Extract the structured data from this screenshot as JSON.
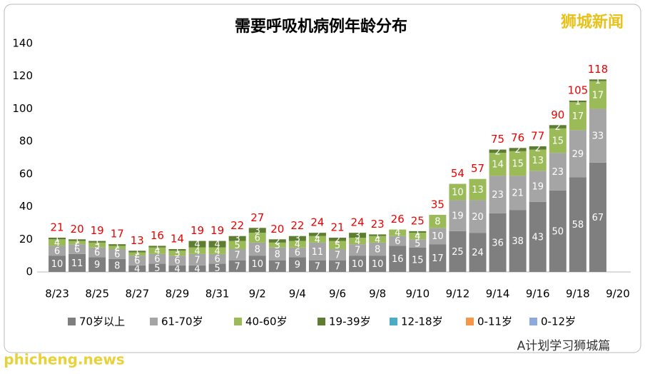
{
  "chart_data": {
    "type": "stacked_bar",
    "title": "需要呼吸机病例年龄分布",
    "categories": [
      "8/23",
      null,
      "8/25",
      null,
      "8/27",
      null,
      "8/29",
      null,
      "8/31",
      null,
      "9/2",
      null,
      "9/4",
      null,
      "9/6",
      null,
      "9/8",
      null,
      "9/10",
      null,
      "9/12",
      null,
      "9/14",
      null,
      "9/16",
      null,
      "9/18",
      null,
      "9/20"
    ],
    "series": [
      {
        "name": "70岁以上",
        "color": "#7f7f7f",
        "values": [
          10,
          11,
          9,
          8,
          4,
          5,
          4,
          4,
          5,
          7,
          10,
          7,
          9,
          7,
          7,
          10,
          10,
          16,
          15,
          17,
          25,
          24,
          36,
          38,
          43,
          50,
          58,
          67,
          null
        ]
      },
      {
        "name": "61-70岁",
        "color": "#a5a5a5",
        "values": [
          6,
          6,
          6,
          6,
          6,
          6,
          6,
          7,
          6,
          7,
          8,
          8,
          6,
          11,
          7,
          7,
          8,
          6,
          5,
          10,
          19,
          20,
          23,
          21,
          19,
          23,
          29,
          33,
          null
        ]
      },
      {
        "name": "40-60岁",
        "color": "#9bbb59",
        "values": [
          4,
          2,
          3,
          2,
          2,
          4,
          3,
          4,
          4,
          5,
          6,
          3,
          4,
          4,
          5,
          4,
          4,
          4,
          4,
          8,
          10,
          13,
          14,
          15,
          13,
          15,
          17,
          17,
          null
        ]
      },
      {
        "name": "19-39岁",
        "color": "#5d7d31",
        "values": [
          1,
          1,
          1,
          1,
          1,
          1,
          1,
          4,
          4,
          3,
          3,
          2,
          3,
          2,
          2,
          3,
          1,
          0,
          1,
          0,
          0,
          0,
          2,
          2,
          2,
          2,
          1,
          1,
          null
        ]
      },
      {
        "name": "12-18岁",
        "color": "#4bacc6",
        "values": [
          0,
          0,
          0,
          0,
          0,
          0,
          0,
          0,
          0,
          0,
          0,
          0,
          0,
          0,
          0,
          0,
          0,
          0,
          0,
          0,
          0,
          0,
          0,
          0,
          0,
          0,
          0,
          0,
          null
        ]
      },
      {
        "name": "0-11岁",
        "color": "#f79646",
        "values": [
          0,
          0,
          0,
          0,
          0,
          0,
          0,
          0,
          0,
          0,
          0,
          0,
          0,
          0,
          0,
          0,
          0,
          0,
          0,
          0,
          0,
          0,
          0,
          0,
          0,
          0,
          0,
          0,
          null
        ]
      },
      {
        "name": "0-12岁",
        "color": "#8ea9db",
        "values": [
          0,
          0,
          0,
          0,
          0,
          0,
          0,
          0,
          0,
          0,
          0,
          0,
          0,
          0,
          0,
          0,
          0,
          0,
          0,
          0,
          0,
          0,
          0,
          0,
          0,
          0,
          0,
          0,
          null
        ]
      }
    ],
    "totals": [
      21,
      20,
      19,
      17,
      13,
      16,
      14,
      19,
      19,
      22,
      27,
      20,
      22,
      24,
      21,
      24,
      23,
      26,
      25,
      35,
      54,
      57,
      75,
      76,
      77,
      90,
      105,
      118,
      null
    ],
    "ylim": [
      0,
      140
    ],
    "yticks": [
      0,
      20,
      40,
      60,
      80,
      100,
      120,
      140
    ],
    "grid": false,
    "legend": "bottom"
  },
  "watermarks": {
    "top": "狮城新闻",
    "bottom_left": "phicheng.news",
    "bottom_right": "A计划学习狮城篇"
  }
}
